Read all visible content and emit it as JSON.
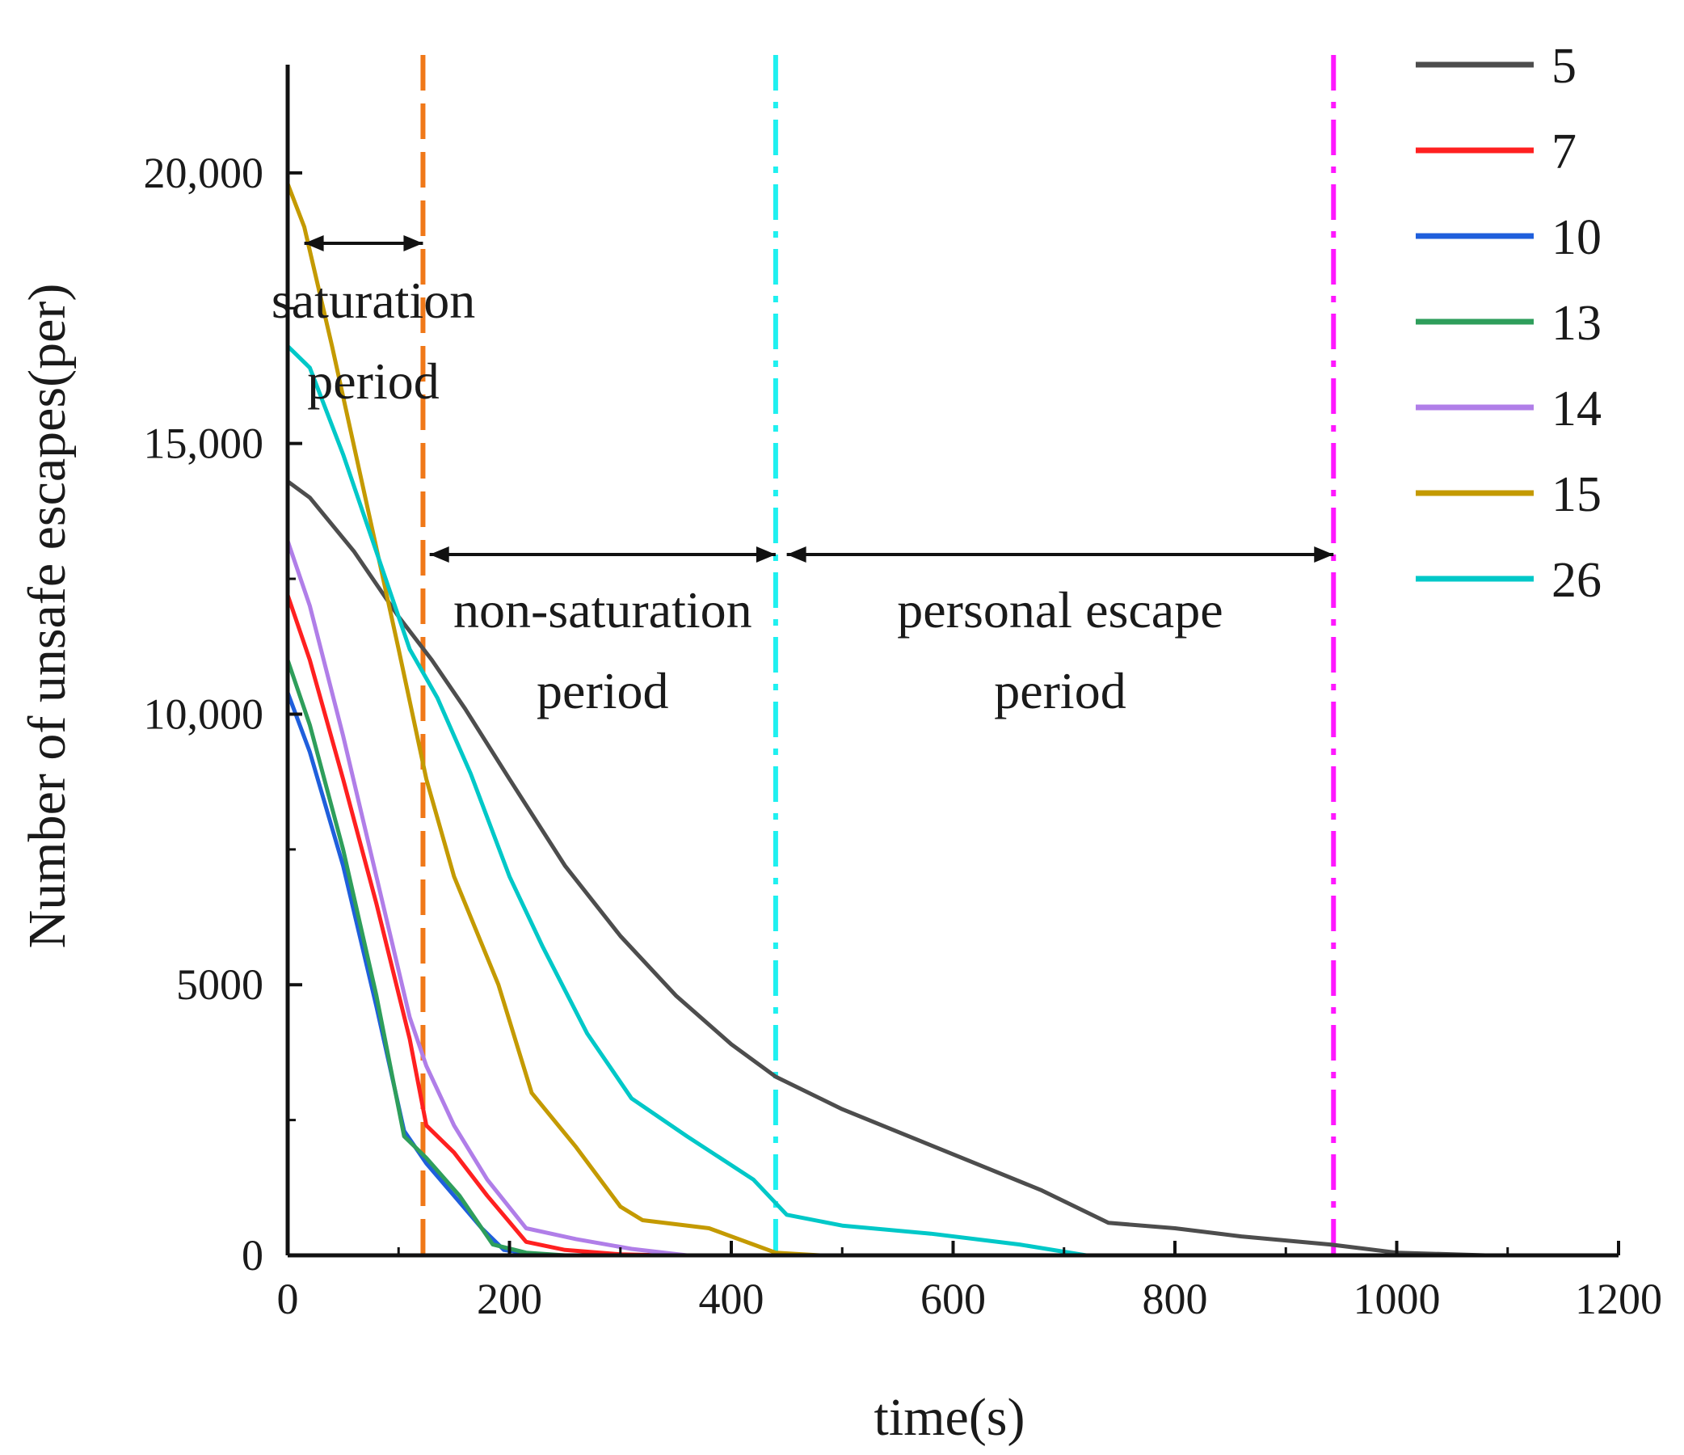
{
  "chart_data": {
    "type": "line",
    "title": "",
    "xlabel": "time(s)",
    "ylabel": "Number of unsafe escapes(per)",
    "xlim": [
      0,
      1200
    ],
    "ylim": [
      0,
      22000
    ],
    "x_ticks": [
      0,
      200,
      400,
      600,
      800,
      1000,
      1200
    ],
    "x_tick_labels": [
      "0",
      "200",
      "400",
      "600",
      "800",
      "1000",
      "1200"
    ],
    "y_ticks": [
      0,
      5000,
      10000,
      15000,
      20000
    ],
    "y_tick_labels": [
      "0",
      "5000",
      "10,000",
      "15,000",
      "20,000"
    ],
    "legend_position": "top-right, outside plot",
    "grid": false,
    "series": [
      {
        "name": "5",
        "color": "#4d4d4d",
        "points": [
          [
            0,
            14300
          ],
          [
            20,
            14000
          ],
          [
            60,
            13000
          ],
          [
            100,
            11800
          ],
          [
            130,
            11000
          ],
          [
            160,
            10100
          ],
          [
            200,
            8800
          ],
          [
            250,
            7200
          ],
          [
            300,
            5900
          ],
          [
            350,
            4800
          ],
          [
            400,
            3900
          ],
          [
            440,
            3300
          ],
          [
            500,
            2700
          ],
          [
            560,
            2200
          ],
          [
            620,
            1700
          ],
          [
            680,
            1200
          ],
          [
            740,
            600
          ],
          [
            800,
            500
          ],
          [
            860,
            350
          ],
          [
            940,
            200
          ],
          [
            1000,
            50
          ],
          [
            1080,
            0
          ]
        ]
      },
      {
        "name": "7",
        "color": "#ff2020",
        "points": [
          [
            0,
            12200
          ],
          [
            20,
            11000
          ],
          [
            50,
            8800
          ],
          [
            80,
            6500
          ],
          [
            110,
            4000
          ],
          [
            125,
            2400
          ],
          [
            150,
            1900
          ],
          [
            180,
            1100
          ],
          [
            215,
            250
          ],
          [
            250,
            100
          ],
          [
            300,
            20
          ],
          [
            340,
            0
          ]
        ]
      },
      {
        "name": "10",
        "color": "#1f5fdc",
        "points": [
          [
            0,
            10400
          ],
          [
            20,
            9300
          ],
          [
            50,
            7200
          ],
          [
            80,
            4600
          ],
          [
            105,
            2300
          ],
          [
            125,
            1700
          ],
          [
            150,
            1100
          ],
          [
            175,
            500
          ],
          [
            195,
            100
          ],
          [
            230,
            0
          ]
        ]
      },
      {
        "name": "13",
        "color": "#2e9e5b",
        "points": [
          [
            0,
            11000
          ],
          [
            20,
            9800
          ],
          [
            50,
            7500
          ],
          [
            80,
            4800
          ],
          [
            105,
            2200
          ],
          [
            125,
            1800
          ],
          [
            155,
            1100
          ],
          [
            185,
            200
          ],
          [
            215,
            50
          ],
          [
            250,
            0
          ]
        ]
      },
      {
        "name": "14",
        "color": "#b07ee8",
        "points": [
          [
            0,
            13200
          ],
          [
            20,
            12000
          ],
          [
            50,
            9600
          ],
          [
            80,
            7000
          ],
          [
            110,
            4400
          ],
          [
            125,
            3500
          ],
          [
            150,
            2400
          ],
          [
            180,
            1400
          ],
          [
            215,
            500
          ],
          [
            260,
            300
          ],
          [
            310,
            120
          ],
          [
            360,
            0
          ]
        ]
      },
      {
        "name": "15",
        "color": "#c49a00",
        "points": [
          [
            0,
            19800
          ],
          [
            15,
            19000
          ],
          [
            40,
            16800
          ],
          [
            70,
            14000
          ],
          [
            100,
            11200
          ],
          [
            125,
            8800
          ],
          [
            150,
            7000
          ],
          [
            190,
            5000
          ],
          [
            220,
            3000
          ],
          [
            260,
            2000
          ],
          [
            300,
            900
          ],
          [
            320,
            650
          ],
          [
            380,
            500
          ],
          [
            420,
            200
          ],
          [
            440,
            50
          ],
          [
            480,
            0
          ]
        ]
      },
      {
        "name": "26",
        "color": "#00c8c8",
        "points": [
          [
            0,
            16800
          ],
          [
            20,
            16400
          ],
          [
            50,
            14800
          ],
          [
            80,
            13000
          ],
          [
            110,
            11200
          ],
          [
            135,
            10300
          ],
          [
            165,
            8900
          ],
          [
            200,
            7000
          ],
          [
            230,
            5700
          ],
          [
            270,
            4100
          ],
          [
            310,
            2900
          ],
          [
            360,
            2200
          ],
          [
            420,
            1400
          ],
          [
            450,
            750
          ],
          [
            500,
            550
          ],
          [
            580,
            400
          ],
          [
            660,
            200
          ],
          [
            720,
            0
          ]
        ]
      }
    ],
    "vertical_lines": [
      {
        "x": 122,
        "color": "#f07818",
        "style": "dashed"
      },
      {
        "x": 440,
        "color": "#1ff0f0",
        "style": "dash-dot"
      },
      {
        "x": 943,
        "color": "#ff18ff",
        "style": "dash-dot"
      }
    ],
    "annotations": [
      {
        "lines": [
          "saturation",
          "period"
        ],
        "span": [
          15,
          122
        ],
        "arrow_y": 18700
      },
      {
        "lines": [
          "non-saturation",
          "period"
        ],
        "span": [
          128,
          440
        ],
        "arrow_y": 12950
      },
      {
        "lines": [
          "personal escape",
          "period"
        ],
        "span": [
          450,
          943
        ],
        "arrow_y": 12950
      }
    ]
  }
}
